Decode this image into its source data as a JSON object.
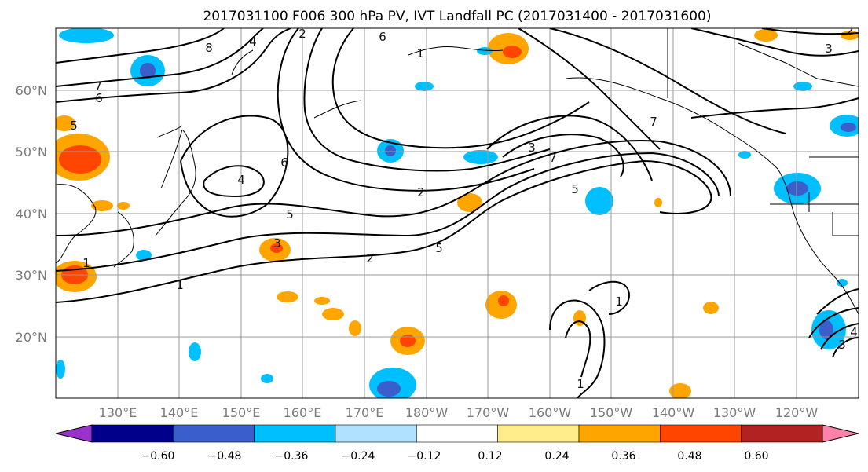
{
  "title": "2017031100 F006 300 hPa PV, IVT Landfall PC (2017031400 - 2017031600)",
  "lat_labels": [
    "60°N",
    "50°N",
    "40°N",
    "30°N",
    "20°N"
  ],
  "lon_labels": [
    "130°E",
    "140°E",
    "150°E",
    "160°E",
    "170°E",
    "180°W",
    "170°W",
    "160°W",
    "150°W",
    "140°W",
    "130°W",
    "120°W"
  ],
  "contour_labels": [
    "1",
    "1",
    "1",
    "2",
    "2",
    "3",
    "3",
    "4",
    "4",
    "5",
    "5",
    "5",
    "5",
    "6",
    "6",
    "6",
    "7",
    "7",
    "7",
    "8",
    "4",
    "3",
    "2",
    "1",
    "1",
    "2",
    "3"
  ],
  "colorbar": {
    "ticks": [
      "−0.60",
      "−0.48",
      "−0.36",
      "−0.24",
      "−0.12",
      "0.12",
      "0.24",
      "0.36",
      "0.48",
      "0.60"
    ],
    "colors": [
      "#9932CC",
      "#00008B",
      "#3A5FCD",
      "#00BFFF",
      "#B0E2FF",
      "#FFFFFF",
      "#FFEC8B",
      "#FFA500",
      "#FF4500",
      "#B22222",
      "#FF82AB"
    ]
  }
}
